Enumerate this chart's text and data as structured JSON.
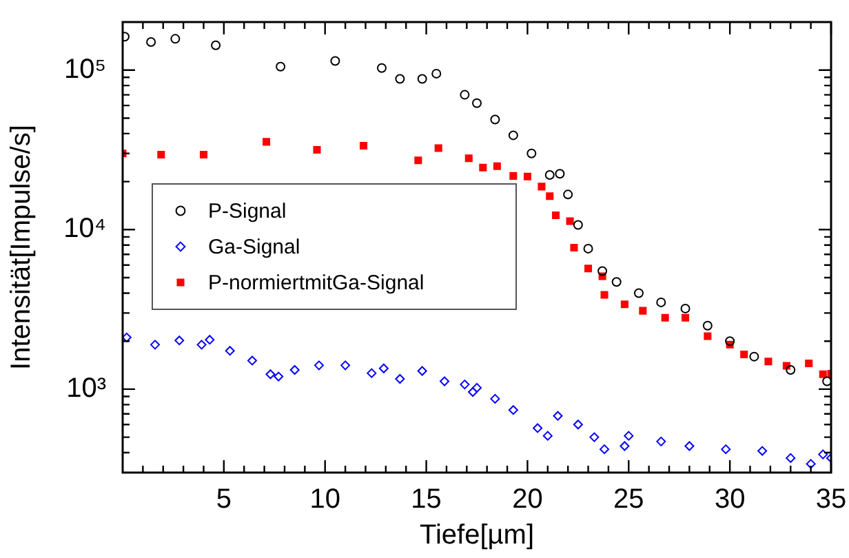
{
  "chart_data": {
    "type": "scatter",
    "xlabel": "Tiefe[µm]",
    "ylabel": "Intensität[Impulse/s]",
    "log": "y",
    "grid": false,
    "legend": "center left",
    "xlim": [
      0,
      35
    ],
    "ylim": [
      300,
      200000
    ],
    "xticks": [
      {
        "value": 1,
        "label": null
      },
      {
        "value": 2,
        "label": null
      },
      {
        "value": 3,
        "label": null
      },
      {
        "value": 4,
        "label": null
      },
      5,
      {
        "value": 6,
        "label": null
      },
      {
        "value": 7,
        "label": null
      },
      {
        "value": 8,
        "label": null
      },
      {
        "value": 9,
        "label": null
      },
      10,
      {
        "value": 11,
        "label": null
      },
      {
        "value": 12,
        "label": null
      },
      {
        "value": 13,
        "label": null
      },
      {
        "value": 14,
        "label": null
      },
      15,
      {
        "value": 16,
        "label": null
      },
      {
        "value": 17,
        "label": null
      },
      {
        "value": 18,
        "label": null
      },
      {
        "value": 19,
        "label": null
      },
      20,
      {
        "value": 21,
        "label": null
      },
      {
        "value": 22,
        "label": null
      },
      {
        "value": 23,
        "label": null
      },
      {
        "value": 24,
        "label": null
      },
      25,
      {
        "value": 26,
        "label": null
      },
      {
        "value": 27,
        "label": null
      },
      {
        "value": 28,
        "label": null
      },
      {
        "value": 29,
        "label": null
      },
      30,
      {
        "value": 31,
        "label": null
      },
      {
        "value": 32,
        "label": null
      },
      {
        "value": 33,
        "label": null
      },
      {
        "value": 34,
        "label": null
      },
      35
    ],
    "yticks": [
      {
        "value": 400,
        "label": null
      },
      {
        "value": 500,
        "label": null
      },
      {
        "value": 600,
        "label": null
      },
      {
        "value": 700,
        "label": null
      },
      {
        "value": 800,
        "label": null
      },
      {
        "value": 900,
        "label": null
      },
      {
        "value": 1000,
        "label": "10³"
      },
      {
        "value": 2000,
        "label": null
      },
      {
        "value": 3000,
        "label": null
      },
      {
        "value": 4000,
        "label": null
      },
      {
        "value": 5000,
        "label": null
      },
      {
        "value": 6000,
        "label": null
      },
      {
        "value": 7000,
        "label": null
      },
      {
        "value": 8000,
        "label": null
      },
      {
        "value": 9000,
        "label": null
      },
      {
        "value": 10000,
        "label": "10⁴"
      },
      {
        "value": 20000,
        "label": null
      },
      {
        "value": 30000,
        "label": null
      },
      {
        "value": 40000,
        "label": null
      },
      {
        "value": 50000,
        "label": null
      },
      {
        "value": 60000,
        "label": null
      },
      {
        "value": 70000,
        "label": null
      },
      {
        "value": 80000,
        "label": null
      },
      {
        "value": 90000,
        "label": null
      },
      {
        "value": 100000,
        "label": "10⁵"
      }
    ],
    "series": [
      {
        "name": "P-Signal",
        "color": "#000000",
        "marker": "circle",
        "x": [
          0.1,
          1.4,
          2.6,
          4.6,
          7.8,
          10.5,
          12.8,
          13.7,
          14.8,
          15.5,
          16.9,
          17.5,
          18.4,
          19.3,
          20.2,
          21.1,
          21.6,
          22.0,
          22.5,
          23.0,
          23.7,
          24.4,
          25.5,
          26.6,
          27.8,
          28.9,
          30.0,
          31.2,
          33.0,
          34.8
        ],
        "values": [
          162000,
          150000,
          157000,
          143000,
          105000,
          114000,
          103000,
          88000,
          88000,
          95000,
          70000,
          62000,
          49000,
          39000,
          30000,
          22000,
          22400,
          16600,
          10700,
          7600,
          5500,
          4700,
          4000,
          3500,
          3200,
          2500,
          2000,
          1600,
          1320,
          1120
        ]
      },
      {
        "name": "Ga-Signal",
        "color": "#0000ff",
        "marker": "diamond",
        "x": [
          0.2,
          1.6,
          2.8,
          3.9,
          4.3,
          5.3,
          6.4,
          7.3,
          7.7,
          8.5,
          9.7,
          11.0,
          12.3,
          12.9,
          13.7,
          14.8,
          15.9,
          16.9,
          17.3,
          17.5,
          18.4,
          19.3,
          20.5,
          21.0,
          21.5,
          22.5,
          23.3,
          23.8,
          24.8,
          25.0,
          26.6,
          28.0,
          29.8,
          31.6,
          33.0,
          34.0,
          34.6,
          35.0
        ],
        "values": [
          2110,
          1900,
          2020,
          1900,
          2040,
          1740,
          1510,
          1240,
          1200,
          1320,
          1410,
          1410,
          1260,
          1350,
          1160,
          1300,
          1120,
          1070,
          960,
          1020,
          870,
          740,
          570,
          510,
          680,
          600,
          500,
          420,
          440,
          510,
          470,
          440,
          420,
          410,
          370,
          340,
          390,
          370
        ]
      },
      {
        "name": "P-normiertmitGa-Signal",
        "color": "#ff0000",
        "marker": "square",
        "x": [
          0.0,
          1.9,
          4.0,
          7.1,
          9.6,
          11.9,
          14.6,
          15.6,
          17.1,
          17.8,
          18.5,
          19.3,
          20.0,
          20.7,
          21.1,
          21.4,
          22.1,
          22.3,
          23.0,
          23.7,
          23.8,
          24.8,
          25.7,
          26.8,
          27.8,
          28.9,
          30.0,
          30.7,
          31.9,
          32.8,
          33.9,
          34.6,
          35.0
        ],
        "values": [
          30000,
          29500,
          29500,
          35500,
          31600,
          33600,
          27200,
          32400,
          28000,
          24500,
          25000,
          21700,
          21500,
          18600,
          16200,
          12300,
          11300,
          7700,
          5700,
          5100,
          3900,
          3400,
          3100,
          2800,
          2800,
          2150,
          1900,
          1650,
          1490,
          1400,
          1450,
          1240,
          1250
        ]
      }
    ]
  }
}
